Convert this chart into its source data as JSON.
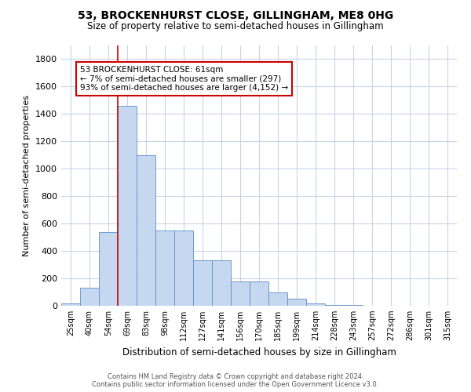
{
  "title": "53, BROCKENHURST CLOSE, GILLINGHAM, ME8 0HG",
  "subtitle": "Size of property relative to semi-detached houses in Gillingham",
  "xlabel": "Distribution of semi-detached houses by size in Gillingham",
  "ylabel": "Number of semi-detached properties",
  "categories": [
    "25sqm",
    "40sqm",
    "54sqm",
    "69sqm",
    "83sqm",
    "98sqm",
    "112sqm",
    "127sqm",
    "141sqm",
    "156sqm",
    "170sqm",
    "185sqm",
    "199sqm",
    "214sqm",
    "228sqm",
    "243sqm",
    "257sqm",
    "272sqm",
    "286sqm",
    "301sqm",
    "315sqm"
  ],
  "bar_heights": [
    20,
    130,
    540,
    1460,
    1100,
    550,
    550,
    330,
    330,
    180,
    180,
    100,
    50,
    15,
    5,
    3,
    2,
    2,
    1,
    1,
    1
  ],
  "bar_color": "#c5d8f0",
  "bar_edge_color": "#5b8fc9",
  "property_line_x": 2.5,
  "property_sqm": 61,
  "annotation_text_line1": "53 BROCKENHURST CLOSE: 61sqm",
  "annotation_text_line2": "← 7% of semi-detached houses are smaller (297)",
  "annotation_text_line3": "93% of semi-detached houses are larger (4,152) →",
  "annotation_box_color": "#ffffff",
  "annotation_box_edge_color": "#cc0000",
  "vline_color": "#cc0000",
  "ylim": [
    0,
    1900
  ],
  "yticks": [
    0,
    200,
    400,
    600,
    800,
    1000,
    1200,
    1400,
    1600,
    1800
  ],
  "footer_line1": "Contains HM Land Registry data © Crown copyright and database right 2024.",
  "footer_line2": "Contains public sector information licensed under the Open Government Licence v3.0.",
  "background_color": "#ffffff",
  "grid_color": "#c8d4e8"
}
